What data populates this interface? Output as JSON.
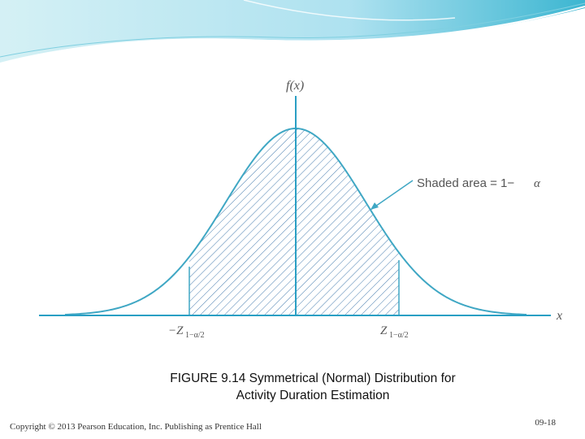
{
  "figure": {
    "y_axis_label": "f(x)",
    "x_axis_label": "x",
    "callout_text": "Shaded area = 1−",
    "callout_symbol": "α",
    "left_tick_main": "−Z",
    "left_tick_sub": "1−α/2",
    "right_tick_main": "Z",
    "right_tick_sub": "1−α/2"
  },
  "caption": {
    "line1": "FIGURE 9.14  Symmetrical (Normal) Distribution for",
    "line2": "Activity Duration Estimation"
  },
  "footer": {
    "copyright": "Copyright © 2013 Pearson Education, Inc. Publishing as Prentice Hall",
    "slide_number": "09-18"
  },
  "colors": {
    "banner_light": "#cdeef3",
    "banner_dark": "#1aa9c9",
    "curve": "#3fa7c4",
    "hatch": "#4a7fb0",
    "axis": "#2a9fc4"
  }
}
